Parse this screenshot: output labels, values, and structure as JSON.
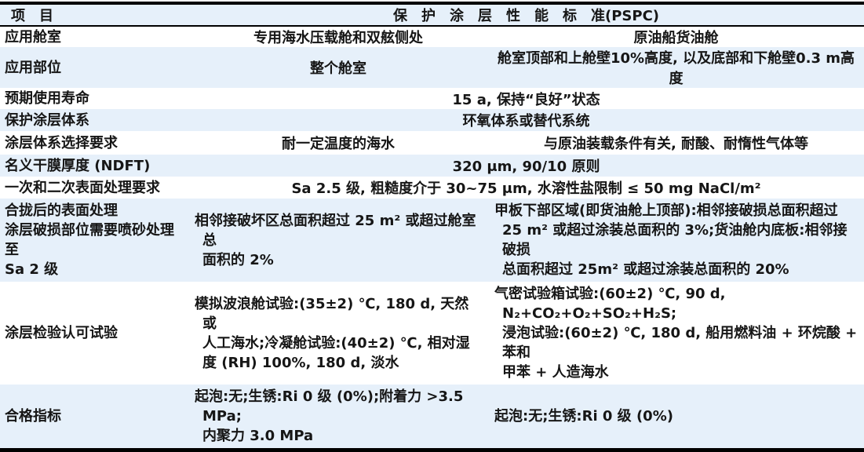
{
  "colors": {
    "row_highlight": "#e6f0fa",
    "border": "#000000",
    "text": "#161616"
  },
  "table": {
    "header": {
      "item_label": "项　目",
      "title": "保　护　涂　层　性　能　标　准(PSPC)"
    },
    "rows": [
      {
        "label": "应用舱室",
        "ballast": "专用海水压载舱和双舷侧处",
        "cargo": "原油船货油舱"
      },
      {
        "label": "应用部位",
        "ballast": "整个舱室",
        "cargo": "舱室顶部和上舱壁10%高度, 以及底部和下舱壁0.3 m高度"
      },
      {
        "label": "预期使用寿命",
        "merged": "15 a, 保持“良好”状态"
      },
      {
        "label": "保护涂层体系",
        "merged": "环氧体系或替代系统"
      },
      {
        "label": "涂层体系选择要求",
        "ballast": "耐一定温度的海水",
        "cargo": "与原油装载条件有关, 耐酸、耐惰性气体等"
      },
      {
        "label": "名义干膜厚度 (NDFT)",
        "merged": "320 μm, 90/10 原则"
      },
      {
        "label": "一次和二次表面处理要求",
        "merged": "Sa 2.5 级, 粗糙度介于 30~75 μm, 水溶性盐限制 ≤ 50 mg NaCl/m²"
      },
      {
        "label": "合拢后的表面处理\n涂层破损部位需要喷砂处理至\nSa 2 级",
        "ballast": "相邻接破坏区总面积超过 25 m² 或超过舱室总\n面积的 2%",
        "cargo": "甲板下部区域(即货油舱上顶部):相邻接破损总面积超过\n25 m² 或超过涂装总面积的 3%;货油舱内底板:相邻接破损\n总面积超过 25m² 或超过涂装总面积的 20%"
      },
      {
        "label": "涂层检验认可试验",
        "ballast": "模拟波浪舱试验:(35±2) ℃, 180 d, 天然或\n人工海水;冷凝舱试验:(40±2) ℃, 相对湿\n度 (RH) 100%, 180 d, 淡水",
        "cargo": "气密试验箱试验:(60±2) ℃, 90 d, N₂+CO₂+O₂+SO₂+H₂S;\n浸泡试验:(60±2) ℃, 180 d, 船用燃料油 + 环烷酸 + 苯和\n甲苯 + 人造海水"
      },
      {
        "label": "合格指标",
        "ballast": "起泡:无;生锈:Ri 0 级 (0%);附着力 >3.5 MPa;\n内聚力 3.0 MPa",
        "cargo": "起泡:无;生锈:Ri 0 级 (0%)"
      }
    ]
  }
}
